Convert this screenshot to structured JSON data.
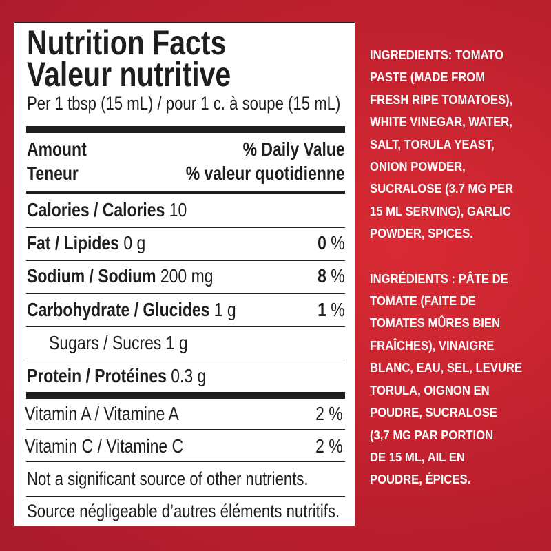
{
  "label": {
    "title_en": "Nutrition Facts",
    "title_fr": "Valeur nutritive",
    "serving": "Per 1 tbsp (15 mL) / pour 1 c. à soupe (15 mL)",
    "amount_en": "Amount",
    "dv_en": "% Daily Value",
    "amount_fr": "Teneur",
    "dv_fr": "% valeur quotidienne",
    "calories": {
      "name": "Calories / Calories",
      "value": "10"
    },
    "nutrients": [
      {
        "name": "Fat / Lipides",
        "amount": "0 g",
        "dv": "0",
        "unit": "%"
      },
      {
        "name": "Sodium / Sodium",
        "amount": "200 mg",
        "dv": "8",
        "unit": "%"
      },
      {
        "name": "Carbohydrate / Glucides",
        "amount": "1 g",
        "dv": "1",
        "unit": "%"
      }
    ],
    "sugars": "Sugars / Sucres 1 g",
    "protein": {
      "name": "Protein / Protéines",
      "amount": "0.3 g"
    },
    "vitamins": [
      {
        "name": "Vitamin A / Vitamine A",
        "dv": "2 %"
      },
      {
        "name": "Vitamin C / Vitamine C",
        "dv": "2 %"
      }
    ],
    "note_en": "Not a significant source of other nutrients.",
    "note_fr": "Source négligeable d’autres éléments nutritifs."
  },
  "ingredients_en": [
    "INGREDIENTS: TOMATO",
    "PASTE (MADE FROM",
    "FRESH RIPE TOMATOES),",
    "WHITE VINEGAR, WATER,",
    "SALT, TORULA YEAST,",
    "ONION POWDER,",
    "SUCRALOSE (3.7 MG PER",
    "15 ML SERVING), GARLIC",
    "POWDER, SPICES."
  ],
  "ingredients_fr": [
    "INGRÉDIENTS : PÂTE DE",
    "TOMATE (FAITE DE",
    "TOMATES MÛRES BIEN",
    "FRAÎCHES), VINAIGRE",
    "BLANC, EAU, SEL, LEVURE",
    "TORULA, OIGNON EN",
    "POUDRE, SUCRALOSE",
    "(3,7 MG PAR PORTION",
    "DE 15 ML, AIL EN",
    "POUDRE, ÉPICES."
  ],
  "colors": {
    "background": "#c3222f",
    "text_on_red": "#ffffff",
    "label_text": "#1e1e1e"
  }
}
